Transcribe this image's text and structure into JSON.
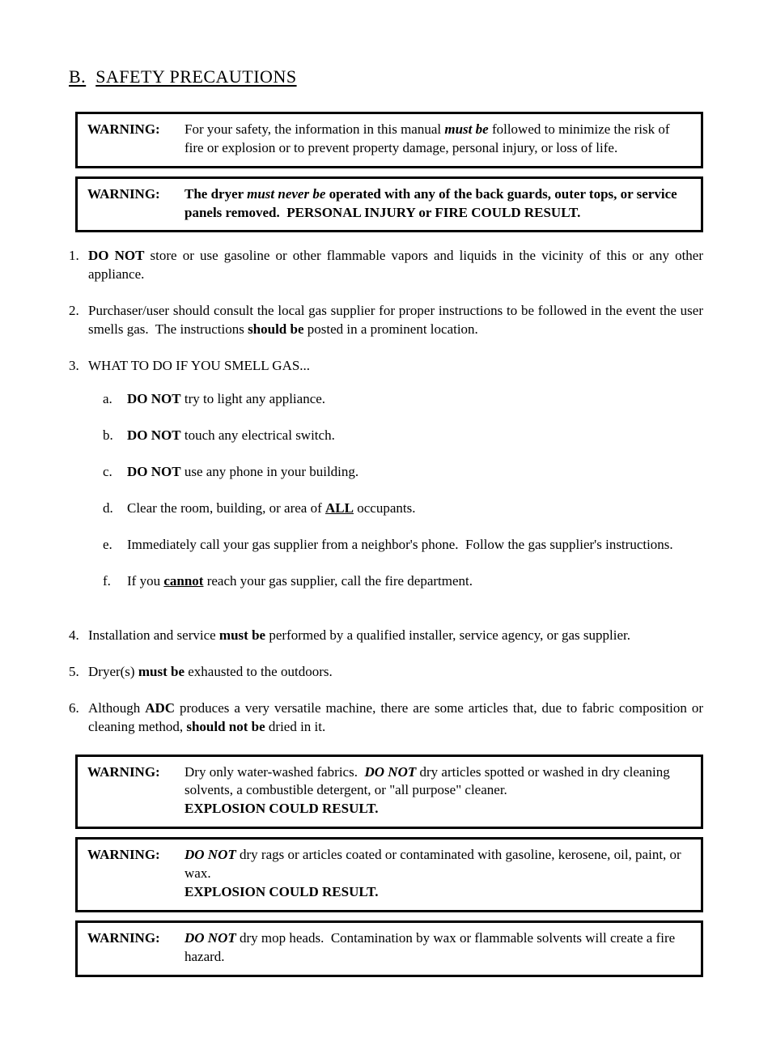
{
  "heading": {
    "prefix": "B.",
    "title": "SAFETY PRECAUTIONS"
  },
  "warnings_top": [
    {
      "label": "WARNING:",
      "html": "For your safety, the information in this manual <span class=\"bi\">must be</span> followed to minimize the risk of fire or explosion or to prevent property damage, personal injury, or loss of life."
    },
    {
      "label": "WARNING:",
      "html": "<span class=\"b\">The dryer </span><span class=\"bi\">must never be</span><span class=\"b\"> operated with any of the back guards, outer tops, or service panels removed.&nbsp; PERSONAL INJURY or FIRE COULD RESULT.</span>"
    }
  ],
  "numbered": [
    {
      "n": "1.",
      "html": "<span class=\"b\">DO NOT</span> store or use gasoline or other flammable vapors and liquids in the vicinity of this or any other appliance."
    },
    {
      "n": "2.",
      "html": "Purchaser/user should consult the local gas supplier for proper instructions to be followed in the event the user smells gas.&nbsp; The instructions <span class=\"b\">should be</span> posted in a prominent location."
    },
    {
      "n": "3.",
      "html": "WHAT TO DO IF YOU SMELL GAS...",
      "sub": [
        {
          "m": "a.",
          "html": "<span class=\"b\">DO NOT</span> try to light any appliance."
        },
        {
          "m": "b.",
          "html": "<span class=\"b\">DO NOT</span> touch any electrical switch."
        },
        {
          "m": "c.",
          "html": "<span class=\"b\">DO NOT</span> use any phone in your building."
        },
        {
          "m": "d.",
          "html": "Clear the room, building, or area of <span class=\"bu\">ALL</span> occupants."
        },
        {
          "m": "e.",
          "html": "Immediately call your gas supplier from a neighbor's phone.&nbsp; Follow the gas supplier's instructions."
        },
        {
          "m": "f.",
          "html": "If you <span class=\"bu\">cannot</span> reach your gas supplier, call the fire department."
        }
      ]
    },
    {
      "n": "4.",
      "html": "Installation and service <span class=\"b\">must be</span> performed by a qualified installer, service agency, or gas supplier."
    },
    {
      "n": "5.",
      "html": "Dryer(s) <span class=\"b\">must be</span> exhausted to the outdoors."
    },
    {
      "n": "6.",
      "html": "Although <span class=\"b\">ADC</span> produces a very versatile machine, there are some articles that, due to fabric composition or cleaning method, <span class=\"b\">should not be</span> dried in it."
    }
  ],
  "warnings_bottom": [
    {
      "label": "WARNING:",
      "html": "Dry only water-washed fabrics.&nbsp; <span class=\"bi\">DO NOT</span> dry articles spotted or washed in dry cleaning solvents, a combustible detergent, or \"all purpose\" cleaner.<br><span class=\"b\">EXPLOSION COULD RESULT.</span>"
    },
    {
      "label": "WARNING:",
      "html": "<span class=\"bi\">DO NOT</span> dry rags or articles coated or contaminated with gasoline, kerosene, oil, paint, or wax.<br><span class=\"b\">EXPLOSION COULD RESULT.</span>"
    },
    {
      "label": "WARNING:",
      "html": "<span class=\"bi\">DO NOT</span> dry mop heads.&nbsp; Contamination by wax or flammable solvents will create a fire hazard."
    }
  ],
  "colors": {
    "text": "#000000",
    "background": "#ffffff",
    "border": "#000000"
  },
  "typography": {
    "body_fontsize_pt": 13,
    "heading_fontsize_pt": 16,
    "font_family": "Times New Roman"
  }
}
